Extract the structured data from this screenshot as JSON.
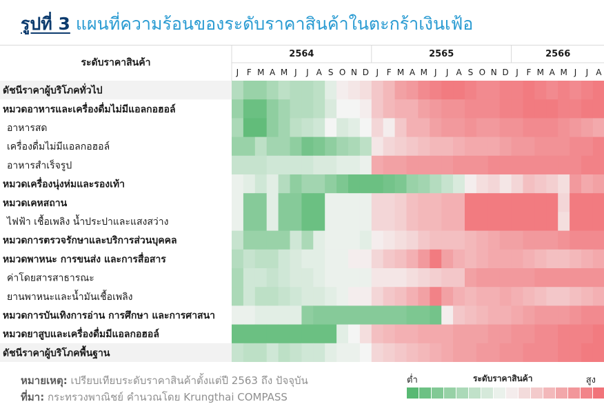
{
  "title": {
    "fig": "รูปที่ 3",
    "text": "แผนที่ความร้อนของระดับราคาสินค้าในตะกร้าเงินเฟ้อ"
  },
  "colors": {
    "low": "#3dae5c",
    "mid": "#f4f5f4",
    "high": "#f15c63",
    "header_bg": "#ffffff",
    "row_label_bg_alt": "#f2f2f2"
  },
  "chart_data": {
    "type": "heatmap",
    "row_header": "ระดับราคาสินค้า",
    "years": [
      {
        "label": "2564",
        "months": 12
      },
      {
        "label": "2565",
        "months": 12
      },
      {
        "label": "2566",
        "months": 8
      }
    ],
    "months": [
      "J",
      "F",
      "M",
      "A",
      "M",
      "J",
      "J",
      "A",
      "S",
      "O",
      "N",
      "D",
      "J",
      "F",
      "M",
      "A",
      "M",
      "J",
      "J",
      "A",
      "S",
      "O",
      "N",
      "D",
      "J",
      "F",
      "M",
      "A",
      "M",
      "J",
      "J",
      "A"
    ],
    "scale": [
      -1,
      1
    ],
    "rows": [
      {
        "label": "ดัชนีราคาผู้บริโภคทั่วไป",
        "bold": true,
        "shade": true,
        "values": [
          -0.35,
          -0.5,
          -0.5,
          -0.4,
          -0.3,
          -0.35,
          -0.35,
          -0.3,
          -0.1,
          0.05,
          0.1,
          0.15,
          0.3,
          0.4,
          0.55,
          0.6,
          0.7,
          0.75,
          0.8,
          0.8,
          0.75,
          0.7,
          0.7,
          0.75,
          0.75,
          0.8,
          0.75,
          0.7,
          0.75,
          0.7,
          0.75,
          0.8
        ]
      },
      {
        "label": "หมวดอาหารและเครื่องดื่มไม่มีแอลกอฮอล์",
        "bold": true,
        "shade": false,
        "values": [
          -0.5,
          -0.75,
          -0.75,
          -0.55,
          -0.45,
          -0.35,
          -0.35,
          -0.3,
          -0.15,
          0.0,
          0.0,
          0.05,
          0.3,
          0.4,
          0.45,
          0.45,
          0.55,
          0.6,
          0.65,
          0.65,
          0.7,
          0.7,
          0.7,
          0.75,
          0.75,
          0.8,
          0.8,
          0.8,
          0.75,
          0.75,
          0.8,
          0.8
        ]
      },
      {
        "label": "อาหารสด",
        "bold": false,
        "shade": false,
        "values": [
          -0.4,
          -0.8,
          -0.8,
          -0.55,
          -0.45,
          -0.3,
          -0.25,
          -0.2,
          0.0,
          -0.15,
          -0.1,
          0.0,
          0.2,
          0.05,
          0.3,
          0.45,
          0.45,
          0.55,
          0.6,
          0.6,
          0.65,
          0.6,
          0.6,
          0.65,
          0.65,
          0.7,
          0.7,
          0.7,
          0.65,
          0.6,
          0.55,
          0.5
        ]
      },
      {
        "label": "เครื่องดื่มไม่มีแอลกอฮอล์",
        "bold": false,
        "shade": false,
        "values": [
          -0.5,
          -0.5,
          -0.3,
          -0.45,
          -0.45,
          -0.55,
          -0.7,
          -0.65,
          -0.55,
          -0.45,
          -0.4,
          -0.3,
          0.1,
          0.2,
          0.25,
          0.3,
          0.35,
          0.4,
          0.4,
          0.45,
          0.5,
          0.5,
          0.5,
          0.55,
          0.6,
          0.6,
          0.65,
          0.65,
          0.65,
          0.7,
          0.7,
          0.75
        ]
      },
      {
        "label": "อาหารสำเร็จรูป",
        "bold": false,
        "shade": false,
        "values": [
          -0.25,
          -0.25,
          -0.25,
          -0.2,
          -0.2,
          -0.2,
          -0.2,
          -0.15,
          -0.15,
          -0.1,
          -0.1,
          -0.05,
          0.5,
          0.55,
          0.55,
          0.6,
          0.6,
          0.6,
          0.6,
          0.65,
          0.65,
          0.65,
          0.7,
          0.7,
          0.7,
          0.7,
          0.7,
          0.7,
          0.7,
          0.7,
          0.75,
          0.75
        ]
      },
      {
        "label": "หมวดเครื่องนุ่งห่มและรองเท้า",
        "bold": true,
        "shade": false,
        "values": [
          -0.05,
          -0.1,
          -0.2,
          -0.1,
          -0.35,
          -0.55,
          -0.45,
          -0.45,
          -0.55,
          -0.65,
          -0.75,
          -0.75,
          -0.75,
          -0.7,
          -0.65,
          -0.5,
          -0.45,
          -0.35,
          -0.25,
          -0.15,
          0.05,
          0.15,
          0.2,
          0.1,
          0.2,
          0.35,
          0.3,
          0.25,
          0.15,
          0.6,
          0.5,
          0.55
        ]
      },
      {
        "label": "หมวดเคหสถาน",
        "bold": true,
        "shade": false,
        "values": [
          -0.05,
          -0.6,
          -0.6,
          -0.1,
          -0.6,
          -0.6,
          -0.75,
          -0.75,
          -0.05,
          -0.05,
          -0.05,
          -0.05,
          0.2,
          0.2,
          0.25,
          0.35,
          0.4,
          0.4,
          0.45,
          0.45,
          0.8,
          0.8,
          0.8,
          0.8,
          0.8,
          0.8,
          0.8,
          0.8,
          0.2,
          0.8,
          0.8,
          0.8
        ]
      },
      {
        "label": "ไฟฟ้า เชื้อเพลิง น้ำประปาและแสงสว่าง",
        "bold": false,
        "shade": false,
        "values": [
          -0.05,
          -0.6,
          -0.6,
          -0.1,
          -0.6,
          -0.6,
          -0.75,
          -0.75,
          -0.05,
          -0.05,
          -0.05,
          -0.05,
          0.2,
          0.2,
          0.25,
          0.35,
          0.4,
          0.4,
          0.45,
          0.45,
          0.8,
          0.8,
          0.8,
          0.8,
          0.8,
          0.8,
          0.8,
          0.8,
          0.15,
          0.8,
          0.8,
          0.8
        ]
      },
      {
        "label": "หมวดการตรวจรักษาและบริการส่วนบุคคล",
        "bold": true,
        "shade": false,
        "values": [
          -0.25,
          -0.5,
          -0.5,
          -0.5,
          -0.5,
          -0.2,
          -0.4,
          -0.1,
          -0.05,
          -0.05,
          -0.05,
          -0.1,
          0.05,
          0.1,
          0.15,
          0.2,
          0.3,
          0.35,
          0.35,
          0.35,
          0.4,
          0.45,
          0.5,
          0.55,
          0.55,
          0.6,
          0.6,
          0.6,
          0.65,
          0.7,
          0.7,
          0.7
        ]
      },
      {
        "label": "หมวดพาหนะ การขนส่ง และการสื่อสาร",
        "bold": true,
        "shade": false,
        "values": [
          -0.35,
          -0.25,
          -0.3,
          -0.3,
          -0.2,
          -0.15,
          -0.1,
          -0.1,
          -0.05,
          -0.05,
          0.05,
          0.05,
          0.2,
          0.3,
          0.35,
          0.45,
          0.6,
          0.8,
          0.55,
          0.45,
          0.4,
          0.45,
          0.5,
          0.5,
          0.5,
          0.45,
          0.4,
          0.35,
          0.35,
          0.4,
          0.45,
          0.5
        ]
      },
      {
        "label": "ค่าโดยสารสาธารณะ",
        "bold": false,
        "shade": false,
        "values": [
          -0.4,
          -0.2,
          -0.2,
          -0.25,
          -0.2,
          -0.15,
          -0.15,
          -0.1,
          -0.05,
          -0.05,
          -0.05,
          -0.05,
          0.1,
          0.1,
          0.1,
          0.15,
          0.2,
          0.25,
          0.3,
          0.3,
          0.55,
          0.6,
          0.6,
          0.6,
          0.6,
          0.6,
          0.65,
          0.65,
          0.65,
          0.65,
          0.65,
          0.65
        ]
      },
      {
        "label": "ยานพาหนะและน้ำมันเชื้อเพลิง",
        "bold": false,
        "shade": false,
        "values": [
          -0.4,
          -0.2,
          -0.3,
          -0.3,
          -0.25,
          -0.2,
          -0.15,
          -0.15,
          -0.1,
          -0.05,
          0.05,
          0.05,
          0.2,
          0.3,
          0.35,
          0.45,
          0.55,
          0.75,
          0.55,
          0.45,
          0.4,
          0.45,
          0.45,
          0.5,
          0.45,
          0.4,
          0.35,
          0.3,
          0.3,
          0.35,
          0.4,
          0.45
        ]
      },
      {
        "label": "หมวดการบันเทิงการอ่าน การศึกษา และการศาสนา",
        "bold": true,
        "shade": false,
        "values": [
          -0.05,
          -0.05,
          -0.1,
          -0.1,
          -0.1,
          -0.1,
          -0.55,
          -0.6,
          -0.6,
          -0.6,
          -0.6,
          -0.6,
          -0.6,
          -0.6,
          -0.6,
          -0.65,
          -0.65,
          -0.7,
          0.05,
          0.3,
          0.35,
          0.4,
          0.45,
          0.45,
          0.5,
          0.55,
          0.6,
          0.6,
          0.6,
          0.65,
          0.7,
          0.7
        ]
      },
      {
        "label": "หมวดยาสูบและเครื่องดื่มมีแอลกอฮอล์",
        "bold": true,
        "shade": false,
        "values": [
          -0.75,
          -0.75,
          -0.75,
          -0.75,
          -0.75,
          -0.75,
          -0.75,
          -0.75,
          -0.75,
          -0.1,
          0.0,
          0.15,
          0.35,
          0.4,
          0.45,
          0.45,
          0.5,
          0.5,
          0.5,
          0.55,
          0.55,
          0.55,
          0.6,
          0.6,
          0.65,
          0.65,
          0.7,
          0.7,
          0.75,
          0.75,
          0.75,
          0.8
        ]
      },
      {
        "label": "ดัชนีราคาผู้บริโภคพื้นฐาน",
        "bold": true,
        "shade": true,
        "values": [
          -0.25,
          -0.3,
          -0.3,
          -0.2,
          -0.3,
          -0.25,
          -0.2,
          -0.2,
          -0.1,
          -0.05,
          -0.05,
          0.0,
          0.2,
          0.25,
          0.3,
          0.35,
          0.4,
          0.45,
          0.5,
          0.55,
          0.55,
          0.6,
          0.6,
          0.65,
          0.65,
          0.7,
          0.7,
          0.7,
          0.75,
          0.75,
          0.8,
          0.8
        ]
      }
    ],
    "legend": {
      "low": "ต่ำ",
      "title": "ระดับราคาสินค้า",
      "high": "สูง",
      "steps": 16
    }
  },
  "footer": {
    "note_label": "หมายเหตุ:",
    "note_text": " เปรียบเทียบระดับราคาสินค้าตั้งแต่ปี 2563 ถึง ปัจจุบัน",
    "source_label": "ที่มา:",
    "source_text": " กระทรวงพาณิชย์ คำนวณโดย Krungthai COMPASS"
  }
}
